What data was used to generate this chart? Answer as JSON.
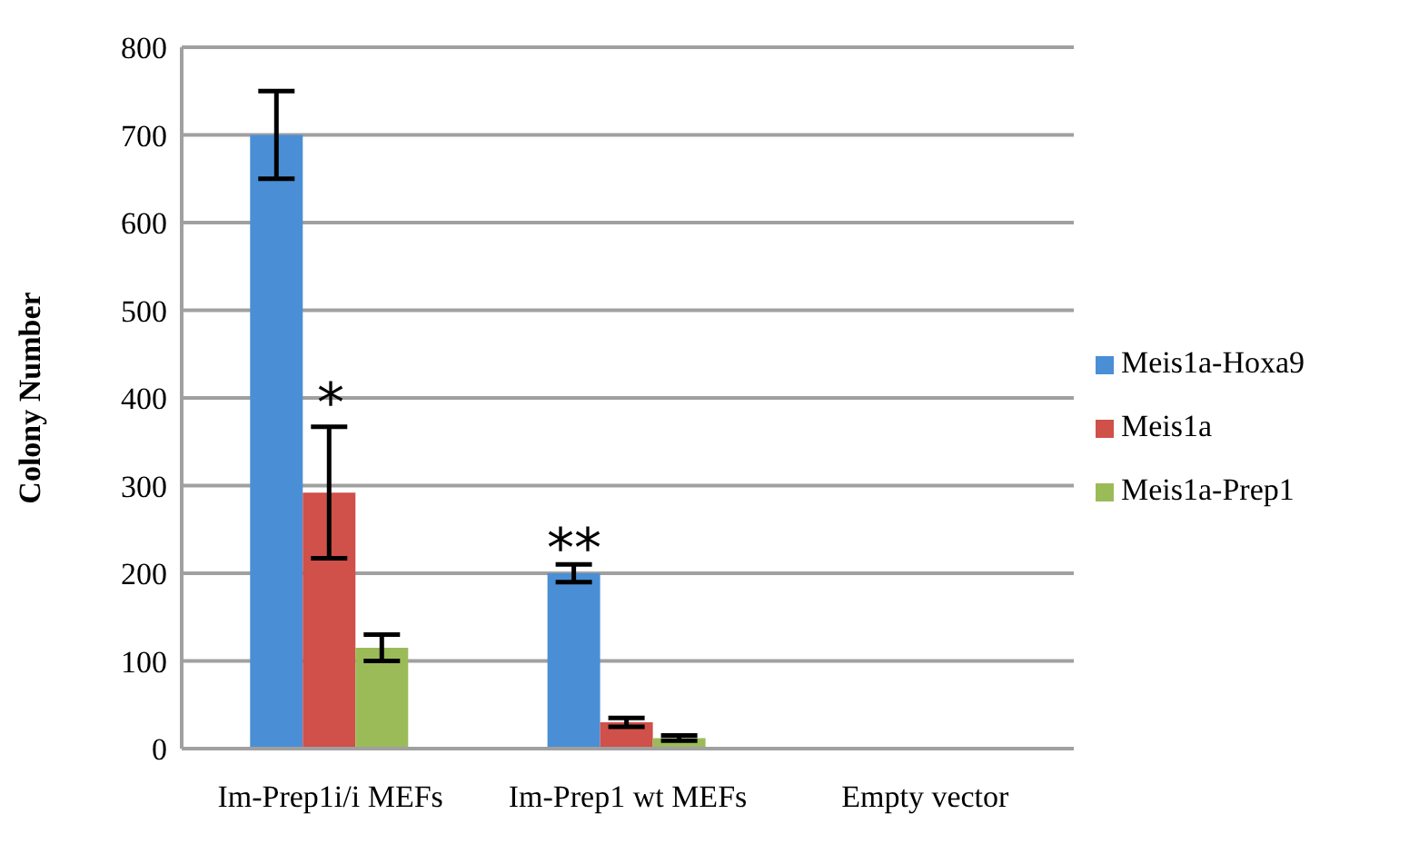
{
  "chart_data": {
    "type": "bar",
    "ylabel": "Colony Number",
    "categories": [
      "Im-Prep1i/i  MEFs",
      "Im-Prep1 wt MEFs",
      "Empty vector"
    ],
    "series": [
      {
        "name": "Meis1a-Hoxa9",
        "color": "#4a8fd6",
        "values": [
          700,
          200,
          0
        ],
        "errors": [
          50,
          10,
          null
        ]
      },
      {
        "name": "Meis1a",
        "color": "#d0504a",
        "values": [
          292,
          30,
          0
        ],
        "errors": [
          75,
          5,
          null
        ]
      },
      {
        "name": "Meis1a-Prep1",
        "color": "#9bbb59",
        "values": [
          115,
          12,
          0
        ],
        "errors": [
          15,
          3,
          null
        ]
      }
    ],
    "ylim": [
      0,
      800
    ],
    "yticks": [
      0,
      100,
      200,
      300,
      400,
      500,
      600,
      700,
      800
    ],
    "grid": "y",
    "legend": "right",
    "annotations": [
      "*",
      "**"
    ]
  }
}
